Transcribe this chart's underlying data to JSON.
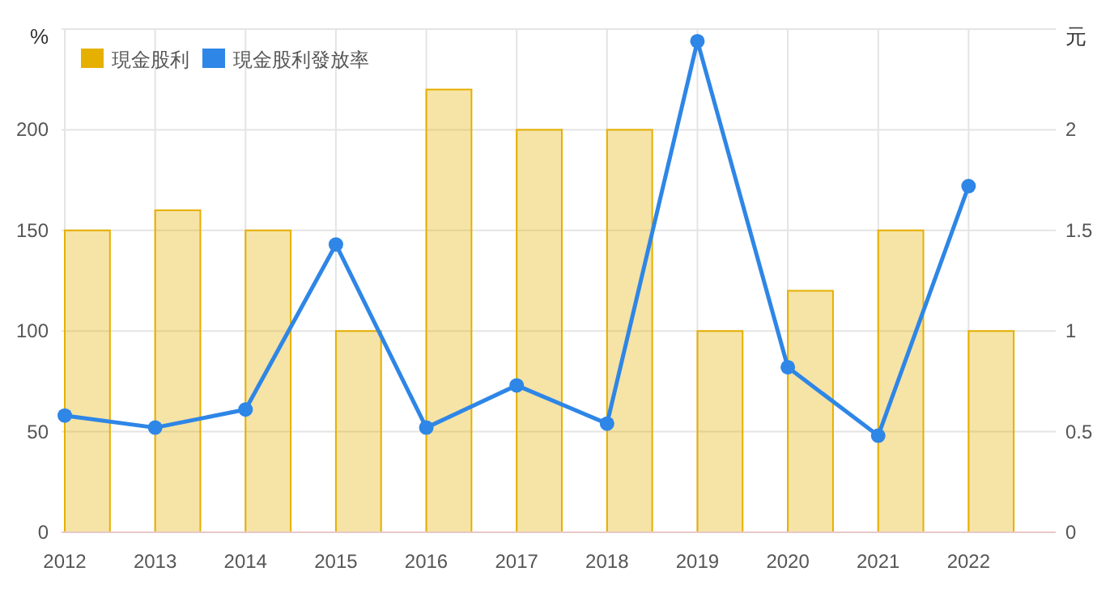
{
  "chart_data": {
    "type": "bar",
    "categories": [
      "2012",
      "2013",
      "2014",
      "2015",
      "2016",
      "2017",
      "2018",
      "2019",
      "2020",
      "2021",
      "2022"
    ],
    "ylabel": "%",
    "y2label": "元",
    "ylim": [
      0,
      250
    ],
    "yticks": [
      0,
      50,
      100,
      150,
      200,
      {
        "value": 250,
        "label": null
      }
    ],
    "y2lim": [
      0,
      2.5
    ],
    "y2ticks": [
      0,
      0.5,
      1,
      1.5,
      2
    ],
    "grid": true,
    "legend": "top left",
    "series": [
      {
        "name": "現金股利",
        "axis": "y2",
        "color": "#e6b000",
        "values": [
          1.5,
          1.6,
          1.5,
          1,
          2.2,
          2,
          2,
          1,
          1.2,
          1.5,
          1
        ]
      },
      {
        "name": "現金股利發放率",
        "type": "line",
        "axis": "y",
        "color": "#2e86e6",
        "marker": "circle",
        "values": [
          58,
          52,
          61,
          143,
          52,
          73,
          54,
          244,
          82,
          48,
          172
        ]
      }
    ]
  }
}
